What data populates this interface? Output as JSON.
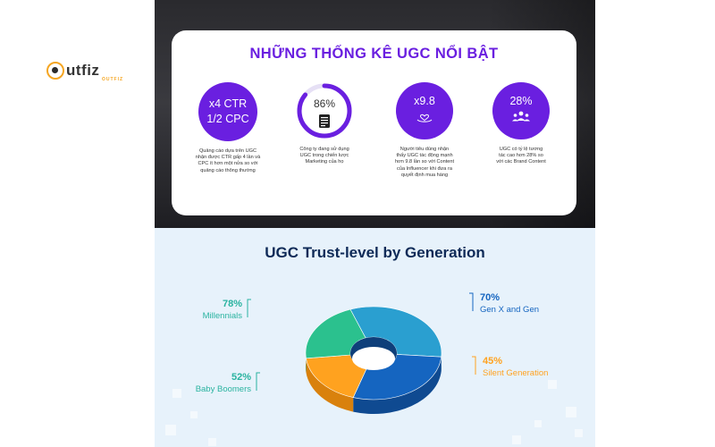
{
  "brand": {
    "logo_text": "utfiz",
    "logo_sub": "OUTFIZ"
  },
  "stats_card": {
    "title": "NHỮNG THỐNG KÊ UGC NỔI BẬT",
    "items": [
      {
        "line1": "x4 CTR",
        "line2": "1/2 CPC",
        "icon": "",
        "desc": [
          "Quảng cáo dựa trên UGC",
          "nhận được CTR gấp 4 lần và",
          "CPC ít hơn một nửa so với",
          "quảng cáo thông thường"
        ]
      },
      {
        "value": "86%",
        "progress": 0.86,
        "icon": "document-icon",
        "desc": [
          "Công ty đang sử dụng",
          "UGC trong chiến lược",
          "Marketing của họ"
        ]
      },
      {
        "value": "x9.8",
        "icon": "heart-hand-icon",
        "desc": [
          "Người tiêu dùng nhận",
          "thấy UGC tác động mạnh",
          "hơn 9.8 lần so với Content",
          "của Influencer khi đưa ra",
          "quyết định mua hàng"
        ]
      },
      {
        "value": "28%",
        "icon": "people-icon",
        "desc": [
          "UGC có tỷ lệ tương",
          "tác cao hơn 28% so",
          "với các Brand Content"
        ]
      }
    ]
  },
  "colors": {
    "purple": "#6a1fe0",
    "millennials": "#2a9fd0",
    "gen_x": "#1565c0",
    "silent": "#ffa21f",
    "boomers": "#2bc18e",
    "title": "#0e2a57"
  },
  "chart_data": {
    "type": "pie",
    "title": "UGC Trust-level by Generation",
    "categories": [
      "Millennials",
      "Gen X and Gen",
      "Silent Generation",
      "Baby Boomers"
    ],
    "values": [
      78,
      70,
      45,
      52
    ],
    "labels": [
      "78%",
      "70%",
      "45%",
      "52%"
    ],
    "style": "3d-donut",
    "legend": "callouts"
  }
}
